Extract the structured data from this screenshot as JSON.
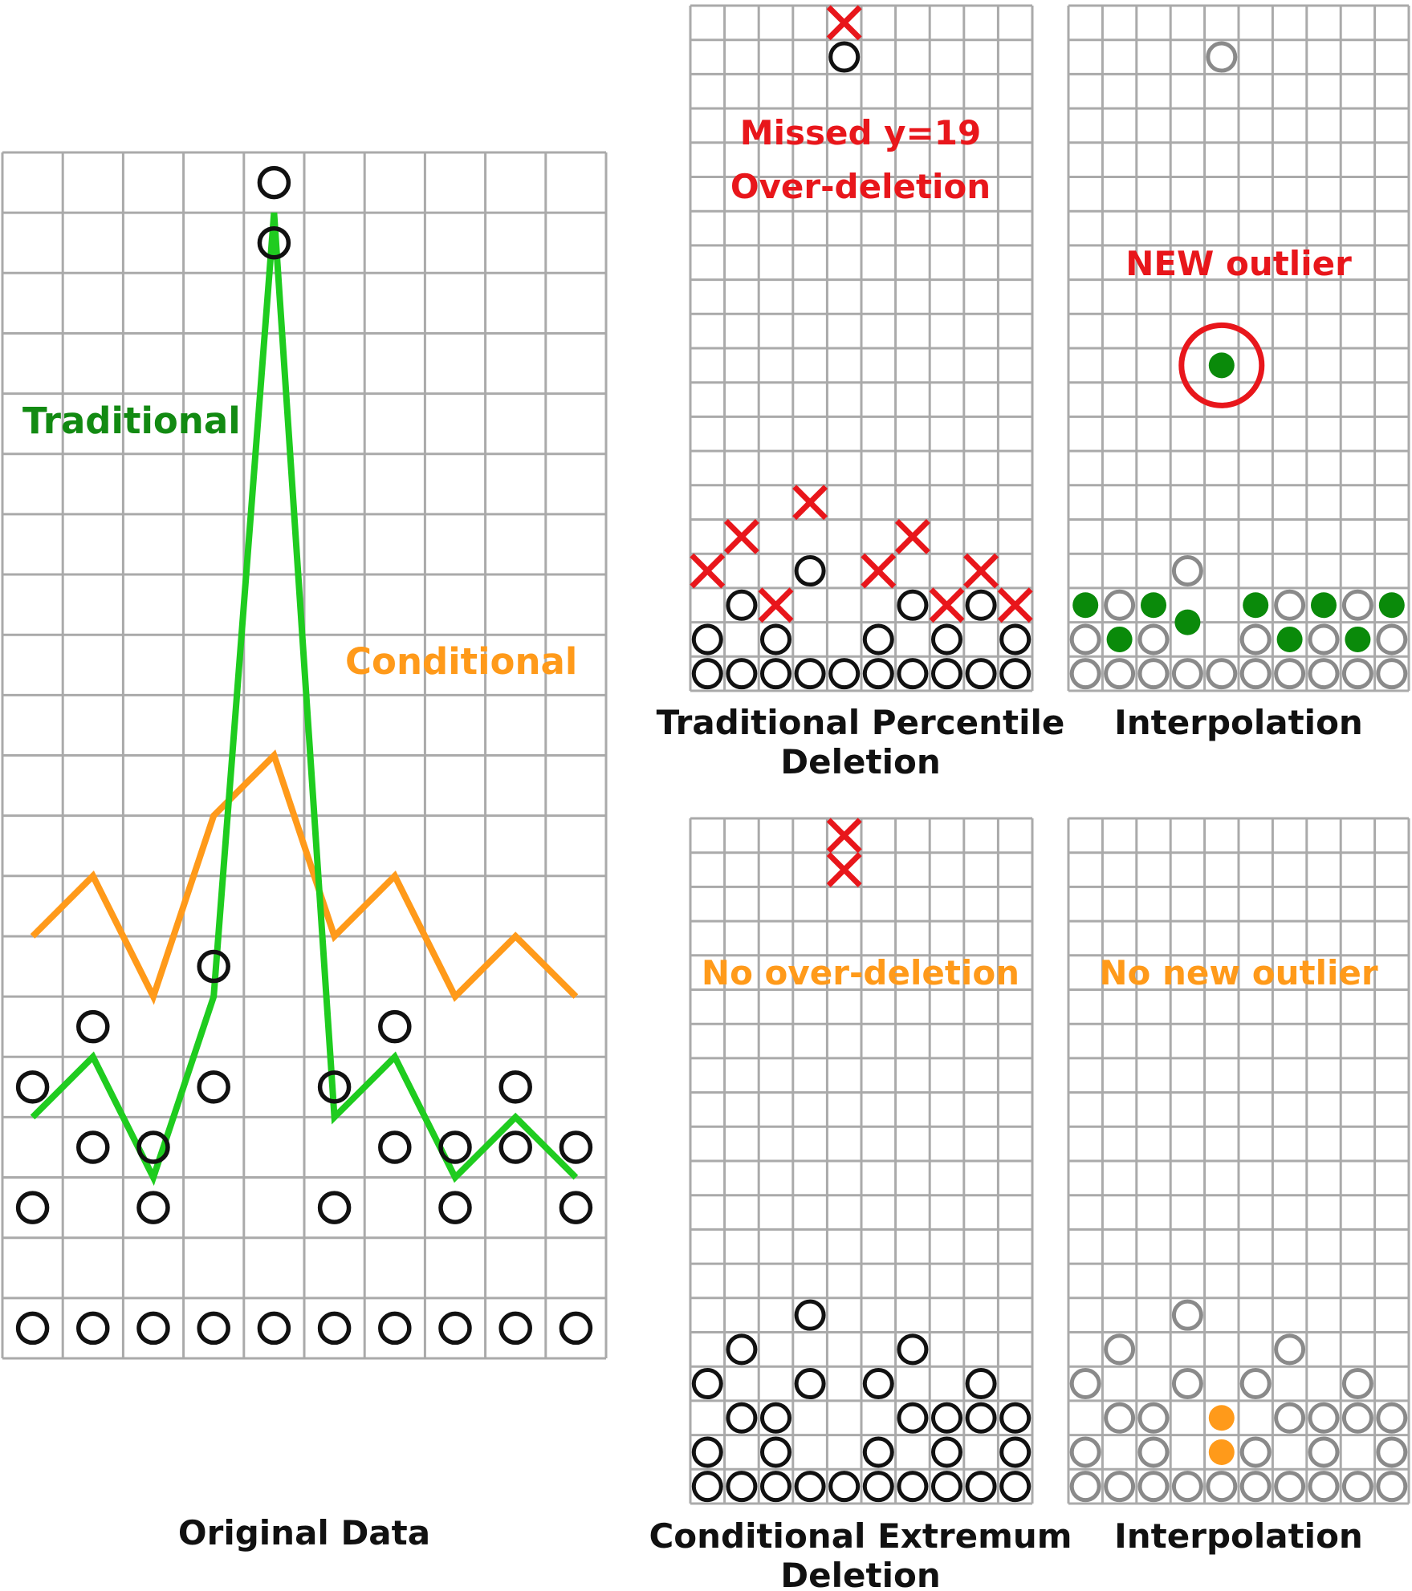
{
  "colors": {
    "grid": "#aaaaaa",
    "circle_black": "#111111",
    "circle_gray": "#8a8a8a",
    "cross_red": "#e8161b",
    "traditional_green": "#1fcc1f",
    "traditional_text_green": "#128a12",
    "conditional_orange": "#ff9a1a",
    "filled_green": "#0a8a0a",
    "highlight_red": "#e8161b",
    "caption": "#111111"
  },
  "panels": {
    "original": {
      "caption": "Original Data",
      "label_traditional": "Traditional",
      "label_conditional": "Conditional",
      "columns": 10,
      "rows": 20,
      "circles": [
        [
          1,
          1
        ],
        [
          1,
          3
        ],
        [
          1,
          5
        ],
        [
          2,
          1
        ],
        [
          2,
          4
        ],
        [
          2,
          6
        ],
        [
          3,
          1
        ],
        [
          3,
          3
        ],
        [
          3,
          4
        ],
        [
          4,
          1
        ],
        [
          4,
          5
        ],
        [
          4,
          7
        ],
        [
          5,
          1
        ],
        [
          5,
          19
        ],
        [
          5,
          20
        ],
        [
          6,
          1
        ],
        [
          6,
          3
        ],
        [
          6,
          5
        ],
        [
          7,
          1
        ],
        [
          7,
          4
        ],
        [
          7,
          6
        ],
        [
          8,
          1
        ],
        [
          8,
          3
        ],
        [
          8,
          4
        ],
        [
          9,
          1
        ],
        [
          9,
          4
        ],
        [
          9,
          5
        ],
        [
          10,
          1
        ],
        [
          10,
          3
        ],
        [
          10,
          4
        ]
      ],
      "traditional_line": [
        4.5,
        5.5,
        3.5,
        6.5,
        19.5,
        4.5,
        5.5,
        3.5,
        4.5,
        3.5
      ],
      "conditional_line": [
        7.5,
        8.5,
        6.5,
        9.5,
        10.5,
        7.5,
        8.5,
        6.5,
        7.5,
        6.5
      ]
    },
    "traditional_deletion": {
      "caption_line1": "Traditional Percentile",
      "caption_line2": "Deletion",
      "note_line1": "Missed y=19",
      "note_line2": "Over-deletion",
      "columns": 10,
      "rows": 20,
      "circles": [
        [
          1,
          1
        ],
        [
          1,
          2
        ],
        [
          2,
          1
        ],
        [
          2,
          3
        ],
        [
          3,
          1
        ],
        [
          3,
          2
        ],
        [
          4,
          1
        ],
        [
          4,
          4
        ],
        [
          5,
          1
        ],
        [
          5,
          19
        ],
        [
          6,
          1
        ],
        [
          6,
          2
        ],
        [
          7,
          1
        ],
        [
          7,
          3
        ],
        [
          8,
          1
        ],
        [
          8,
          2
        ],
        [
          9,
          1
        ],
        [
          9,
          3
        ],
        [
          10,
          1
        ],
        [
          10,
          2
        ]
      ],
      "crosses": [
        [
          1,
          4
        ],
        [
          2,
          5
        ],
        [
          3,
          3
        ],
        [
          4,
          6
        ],
        [
          5,
          20
        ],
        [
          6,
          4
        ],
        [
          7,
          5
        ],
        [
          8,
          3
        ],
        [
          9,
          4
        ],
        [
          10,
          3
        ]
      ]
    },
    "traditional_interpolation": {
      "caption": "Interpolation",
      "note": "NEW outlier",
      "columns": 10,
      "rows": 20,
      "gray_circles": [
        [
          1,
          1
        ],
        [
          1,
          2
        ],
        [
          2,
          1
        ],
        [
          2,
          3
        ],
        [
          3,
          1
        ],
        [
          3,
          2
        ],
        [
          4,
          1
        ],
        [
          4,
          4
        ],
        [
          5,
          1
        ],
        [
          5,
          19
        ],
        [
          6,
          1
        ],
        [
          6,
          2
        ],
        [
          7,
          1
        ],
        [
          7,
          3
        ],
        [
          8,
          1
        ],
        [
          8,
          2
        ],
        [
          9,
          1
        ],
        [
          9,
          3
        ],
        [
          10,
          1
        ],
        [
          10,
          2
        ]
      ],
      "filled_dots": [
        [
          1,
          3
        ],
        [
          2,
          2
        ],
        [
          3,
          3
        ],
        [
          4,
          2.5
        ],
        [
          5,
          10
        ],
        [
          6,
          3
        ],
        [
          7,
          2
        ],
        [
          8,
          3
        ],
        [
          9,
          2
        ],
        [
          10,
          3
        ]
      ],
      "ring_on": [
        5,
        10
      ]
    },
    "conditional_deletion": {
      "caption_line1": "Conditional Extremum",
      "caption_line2": "Deletion",
      "note": "No over-deletion",
      "columns": 10,
      "rows": 20,
      "circles": [
        [
          1,
          1
        ],
        [
          1,
          2
        ],
        [
          1,
          4
        ],
        [
          2,
          1
        ],
        [
          2,
          3
        ],
        [
          2,
          5
        ],
        [
          3,
          1
        ],
        [
          3,
          2
        ],
        [
          3,
          3
        ],
        [
          4,
          1
        ],
        [
          4,
          4
        ],
        [
          4,
          6
        ],
        [
          5,
          1
        ],
        [
          6,
          1
        ],
        [
          6,
          2
        ],
        [
          6,
          4
        ],
        [
          7,
          1
        ],
        [
          7,
          3
        ],
        [
          7,
          5
        ],
        [
          8,
          1
        ],
        [
          8,
          2
        ],
        [
          8,
          3
        ],
        [
          9,
          1
        ],
        [
          9,
          3
        ],
        [
          9,
          4
        ],
        [
          10,
          1
        ],
        [
          10,
          2
        ],
        [
          10,
          3
        ]
      ],
      "crosses": [
        [
          5,
          19
        ],
        [
          5,
          20
        ]
      ]
    },
    "conditional_interpolation": {
      "caption": "Interpolation",
      "note": "No new outlier",
      "columns": 10,
      "rows": 20,
      "gray_circles": [
        [
          1,
          1
        ],
        [
          1,
          2
        ],
        [
          1,
          4
        ],
        [
          2,
          1
        ],
        [
          2,
          3
        ],
        [
          2,
          5
        ],
        [
          3,
          1
        ],
        [
          3,
          2
        ],
        [
          3,
          3
        ],
        [
          4,
          1
        ],
        [
          4,
          4
        ],
        [
          4,
          6
        ],
        [
          5,
          1
        ],
        [
          6,
          1
        ],
        [
          6,
          2
        ],
        [
          6,
          4
        ],
        [
          7,
          1
        ],
        [
          7,
          3
        ],
        [
          7,
          5
        ],
        [
          8,
          1
        ],
        [
          8,
          2
        ],
        [
          8,
          3
        ],
        [
          9,
          1
        ],
        [
          9,
          3
        ],
        [
          9,
          4
        ],
        [
          10,
          1
        ],
        [
          10,
          2
        ],
        [
          10,
          3
        ]
      ],
      "filled_dots": [
        [
          5,
          2
        ],
        [
          5,
          3
        ]
      ]
    }
  }
}
